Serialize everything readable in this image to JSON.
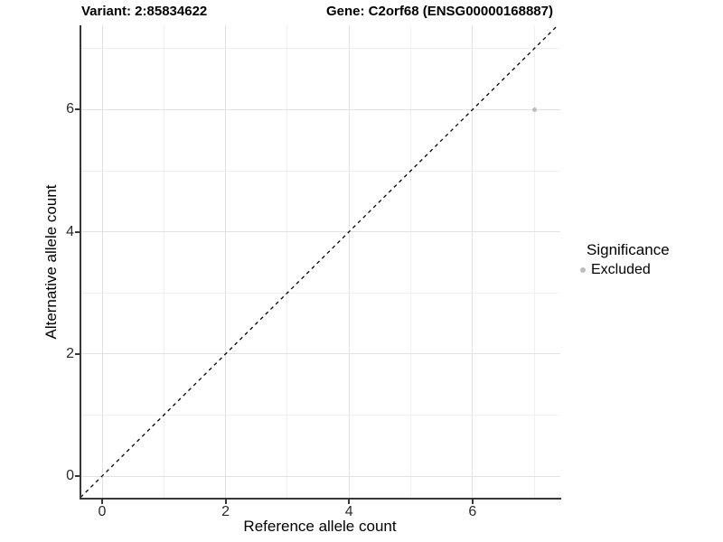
{
  "chart_data": {
    "type": "scatter",
    "title_left": "Variant: 2:85834622",
    "title_right": "Gene: C2orf68 (ENSG00000168887)",
    "xlabel": "Reference allele count",
    "ylabel": "Alternative allele count",
    "xlim": [
      -0.35,
      7.42
    ],
    "ylim": [
      -0.37,
      7.38
    ],
    "x_ticks": [
      0,
      2,
      4,
      6
    ],
    "y_ticks": [
      0,
      2,
      4,
      6
    ],
    "grid": {
      "minor_every": 1,
      "major_on_ticks": true,
      "major_color": "#e2e2e2",
      "minor_color": "#f0f0f0"
    },
    "reference_line": {
      "type": "identity",
      "equation": "y = x",
      "style": "dashed",
      "color": "#000000"
    },
    "series": [
      {
        "name": "Excluded",
        "color": "#bdbdbd",
        "points": [
          {
            "x": 7,
            "y": 6
          }
        ]
      }
    ],
    "legend": {
      "title": "Significance",
      "position": "right",
      "items": [
        {
          "label": "Excluded",
          "color": "#bdbdbd"
        }
      ]
    },
    "colors": {
      "background": "#ffffff",
      "axis_line": "#383838",
      "tick_label": "#2b2b2b",
      "point_gray": "#bdbdbd"
    }
  }
}
